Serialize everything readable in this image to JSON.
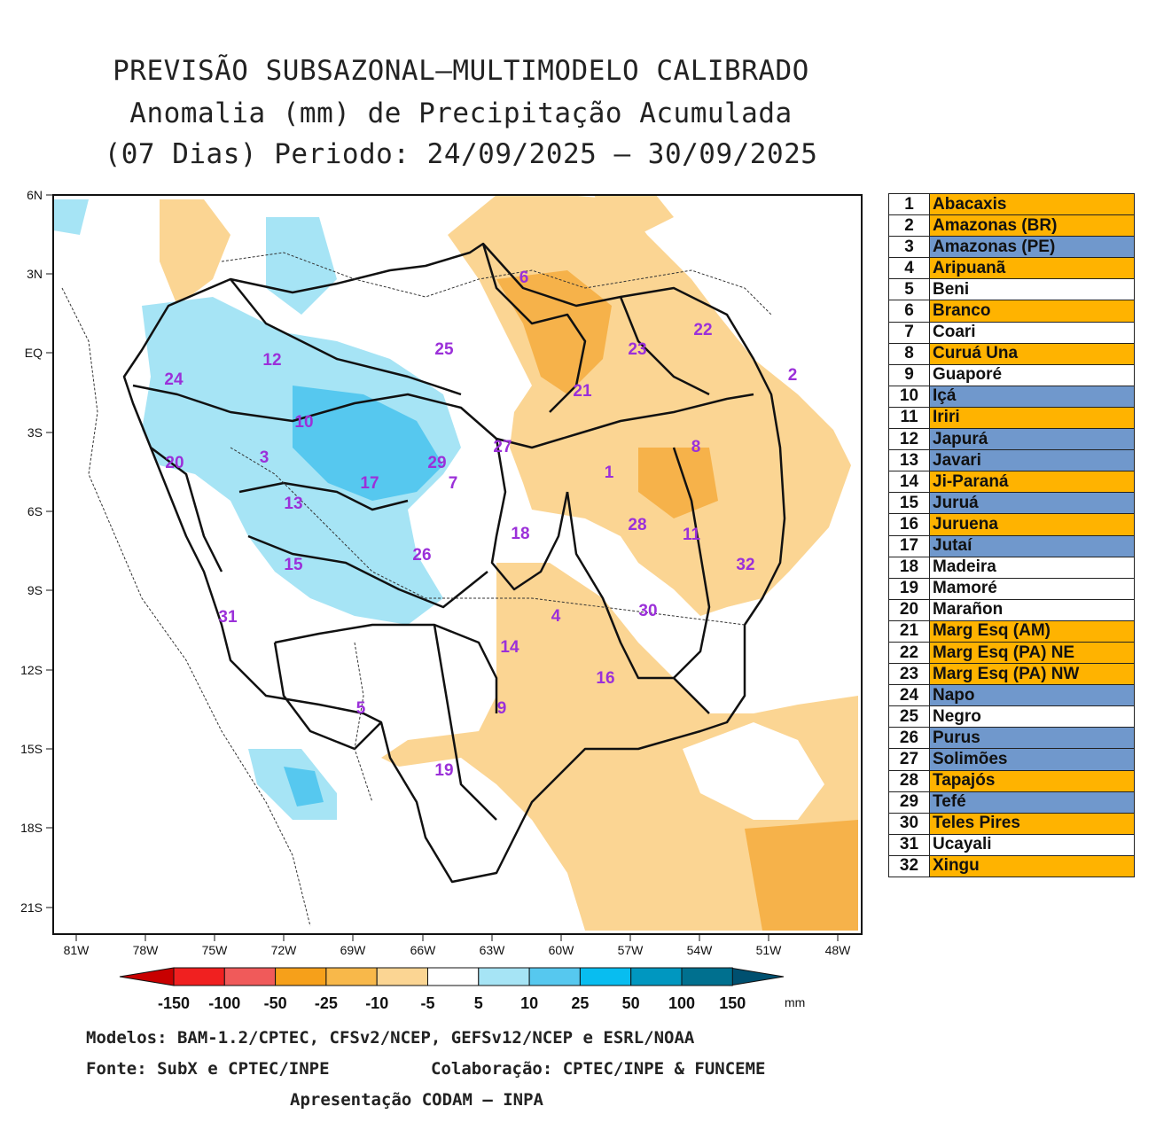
{
  "title": {
    "line1": "PREVISÃO SUBSAZONAL–MULTIMODELO CALIBRADO",
    "line2": "Anomalia (mm) de Precipitação Acumulada",
    "line3": "(07 Dias) Periodo: 24/09/2025 – 30/09/2025"
  },
  "map": {
    "lat_labels": [
      "6N",
      "3N",
      "EQ",
      "3S",
      "6S",
      "9S",
      "12S",
      "15S",
      "18S",
      "21S"
    ],
    "lon_labels": [
      "81W",
      "78W",
      "75W",
      "72W",
      "69W",
      "66W",
      "63W",
      "60W",
      "57W",
      "54W",
      "51W",
      "48W"
    ],
    "lon_range": [
      -82,
      -47
    ],
    "lat_range": [
      6,
      -22
    ]
  },
  "basins": [
    {
      "num": "1",
      "name": "Abacaxis",
      "category": "orange"
    },
    {
      "num": "2",
      "name": "Amazonas (BR)",
      "category": "orange"
    },
    {
      "num": "3",
      "name": "Amazonas (PE)",
      "category": "blue"
    },
    {
      "num": "4",
      "name": "Aripuanã",
      "category": "orange"
    },
    {
      "num": "5",
      "name": "Beni",
      "category": "white"
    },
    {
      "num": "6",
      "name": "Branco",
      "category": "orange"
    },
    {
      "num": "7",
      "name": "Coari",
      "category": "white"
    },
    {
      "num": "8",
      "name": "Curuá Una",
      "category": "orange"
    },
    {
      "num": "9",
      "name": "Guaporé",
      "category": "white"
    },
    {
      "num": "10",
      "name": "Içá",
      "category": "blue"
    },
    {
      "num": "11",
      "name": "Iriri",
      "category": "orange"
    },
    {
      "num": "12",
      "name": "Japurá",
      "category": "blue"
    },
    {
      "num": "13",
      "name": "Javari",
      "category": "blue"
    },
    {
      "num": "14",
      "name": "Ji-Paraná",
      "category": "orange"
    },
    {
      "num": "15",
      "name": "Juruá",
      "category": "blue"
    },
    {
      "num": "16",
      "name": "Juruena",
      "category": "orange"
    },
    {
      "num": "17",
      "name": "Jutaí",
      "category": "blue"
    },
    {
      "num": "18",
      "name": "Madeira",
      "category": "white"
    },
    {
      "num": "19",
      "name": "Mamoré",
      "category": "white"
    },
    {
      "num": "20",
      "name": "Marañon",
      "category": "white"
    },
    {
      "num": "21",
      "name": "Marg Esq (AM)",
      "category": "orange"
    },
    {
      "num": "22",
      "name": "Marg Esq (PA) NE",
      "category": "orange"
    },
    {
      "num": "23",
      "name": "Marg Esq (PA) NW",
      "category": "orange"
    },
    {
      "num": "24",
      "name": "Napo",
      "category": "blue"
    },
    {
      "num": "25",
      "name": "Negro",
      "category": "white"
    },
    {
      "num": "26",
      "name": "Purus",
      "category": "blue"
    },
    {
      "num": "27",
      "name": "Solimões",
      "category": "blue"
    },
    {
      "num": "28",
      "name": "Tapajós",
      "category": "orange"
    },
    {
      "num": "29",
      "name": "Tefé",
      "category": "blue"
    },
    {
      "num": "30",
      "name": "Teles Pires",
      "category": "orange"
    },
    {
      "num": "31",
      "name": "Ucayali",
      "category": "white"
    },
    {
      "num": "32",
      "name": "Xingu",
      "category": "orange"
    }
  ],
  "colors": {
    "orange": "#ffb300",
    "blue": "#7098cc",
    "white": "#ffffff",
    "dry_light": "#fbd593",
    "dry_mid": "#f6b24a",
    "wet_light": "#a6e4f5",
    "wet_mid": "#56c8ef",
    "region_label": "#9b30d9"
  },
  "colorbar": {
    "labels": [
      "-150",
      "-100",
      "-50",
      "-25",
      "-10",
      "-5",
      "5",
      "10",
      "25",
      "50",
      "100",
      "150"
    ],
    "unit": "mm",
    "colors": [
      "#c80000",
      "#f02020",
      "#f05a5a",
      "#f6a01a",
      "#f8b84a",
      "#fbd593",
      "#ffffff",
      "#a6e4f5",
      "#56c8ef",
      "#08bdf0",
      "#0097c0",
      "#00708f",
      "#005070"
    ]
  },
  "footer": {
    "line1": "Modelos: BAM-1.2/CPTEC, CFSv2/NCEP, GEFSv12/NCEP e ESRL/NOAA",
    "source": "Fonte: SubX e CPTEC/INPE",
    "collab": "Colaboração: CPTEC/INPE & FUNCEME",
    "presentation": "Apresentação CODAM – INPA"
  }
}
